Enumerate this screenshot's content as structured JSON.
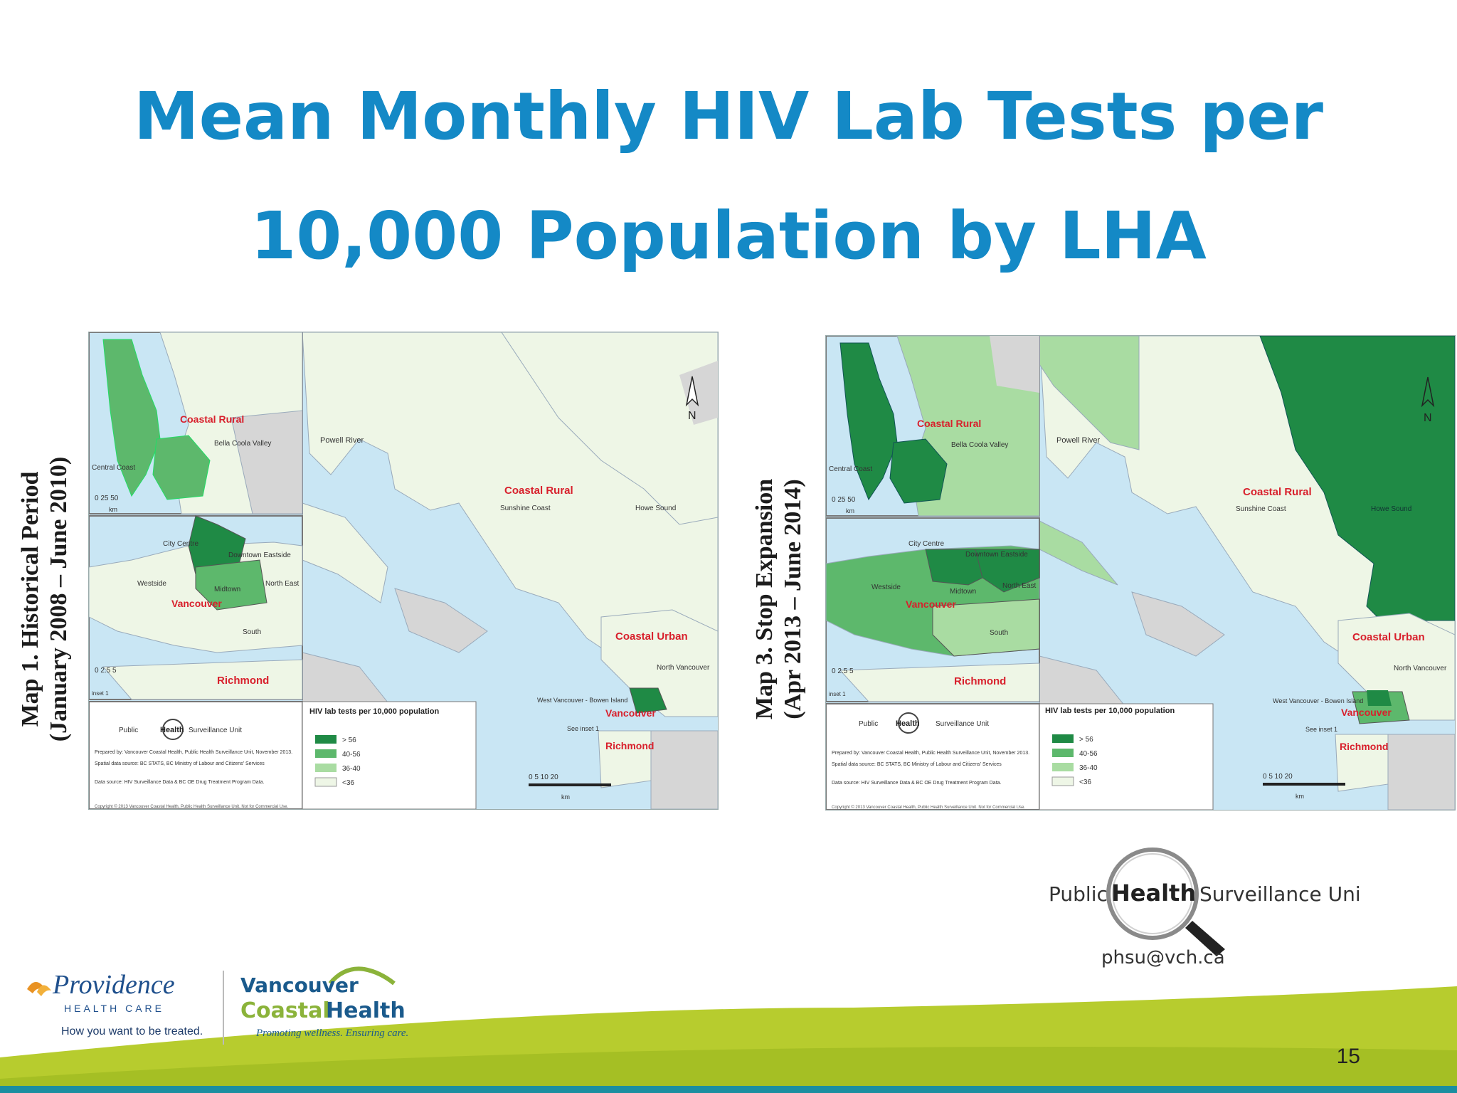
{
  "title": {
    "line1": "Mean Monthly HIV Lab Tests per",
    "line2": "10,000 Population by LHA"
  },
  "map1": {
    "caption_line1": "Map 1. Historical Period",
    "caption_line2": "(January 2008 – June 2010)",
    "regions": {
      "coastal_rural_inset": "Coastal Rural",
      "bella_coola": "Bella Coola Valley",
      "central_coast": "Central Coast",
      "city_centre": "City Centre",
      "downtown_eastside": "Downtown Eastside",
      "westside": "Westside",
      "midtown": "Midtown",
      "north_east": "North East",
      "vancouver": "Vancouver",
      "south": "South",
      "richmond": "Richmond",
      "powell_river": "Powell River",
      "coastal_rural": "Coastal Rural",
      "sunshine_coast": "Sunshine Coast",
      "howe_sound": "Howe Sound",
      "coastal_urban": "Coastal Urban",
      "north_vancouver": "North Vancouver",
      "west_vancouver": "West Vancouver - Bowen Island",
      "see_inset": "See inset 1",
      "vancouver_main": "Vancouver",
      "richmond_main": "Richmond"
    },
    "legend_title": "HIV lab tests per 10,000 population",
    "legend_items": [
      "> 56",
      "40-56",
      "36-40",
      "<36"
    ],
    "phsu_left": "Public",
    "phsu_mid": "Health",
    "phsu_right": "Surveillance Unit",
    "prepared": "Prepared by: Vancouver Coastal Health, Public Health Surveillance Unit, November 2013.",
    "spatial": "Spatial data source: BC STATS, BC Ministry of Labour and Citizens' Services",
    "datasource": "Data source: HIV Surveillance Data & BC OE Drug Treatment Program Data.",
    "copyright": "Copyright © 2013 Vancouver Coastal Health, Public Health Surveillance Unit. Not for Commercial Use.",
    "scale_inset1": "0  25  50",
    "scale_inset2": "0   2.5   5",
    "scale_main": "0   5   10        20",
    "km": "km",
    "north": "N",
    "inset1": "inset 1"
  },
  "map3": {
    "caption_line1": "Map 3. Stop Expansion",
    "caption_line2": "(Apr 2013 – June 2014)",
    "regions": {
      "coastal_rural_inset": "Coastal Rural",
      "bella_coola": "Bella Coola Valley",
      "central_coast": "Central Coast",
      "city_centre": "City Centre",
      "downtown_eastside": "Downtown Eastside",
      "westside": "Westside",
      "midtown": "Midtown",
      "north_east": "North East",
      "vancouver": "Vancouver",
      "south": "South",
      "richmond": "Richmond",
      "powell_river": "Powell River",
      "coastal_rural": "Coastal Rural",
      "sunshine_coast": "Sunshine Coast",
      "howe_sound": "Howe Sound",
      "coastal_urban": "Coastal Urban",
      "north_vancouver": "North Vancouver",
      "west_vancouver": "West Vancouver - Bowen Island",
      "see_inset": "See inset 1",
      "vancouver_main": "Vancouver",
      "richmond_main": "Richmond"
    },
    "legend_title": "HIV lab tests per 10,000 population",
    "legend_items": [
      "> 56",
      "40-56",
      "36-40",
      "<36"
    ],
    "phsu_left": "Public",
    "phsu_mid": "Health",
    "phsu_right": "Surveillance Unit",
    "prepared": "Prepared by: Vancouver Coastal Health, Public Health Surveillance Unit, November 2013.",
    "spatial": "Spatial data source: BC STATS, BC Ministry of Labour and Citizens' Services",
    "datasource": "Data source: HIV Surveillance Data & BC OE Drug Treatment Program Data.",
    "copyright": "Copyright © 2013 Vancouver Coastal Health, Public Health Surveillance Unit. Not for Commercial Use.",
    "scale_inset1": "0  25  50",
    "scale_inset2": "0   2.5   5",
    "scale_main": "0   5   10        20",
    "km": "km",
    "north": "N",
    "inset1": "inset 1"
  },
  "phsu_logo": {
    "left": "Public",
    "mid": "Health",
    "right": "Surveillance Unit",
    "email": "phsu@vch.ca"
  },
  "footer": {
    "providence_name": "Providence",
    "providence_sub": "HEALTH CARE",
    "providence_tag": "How you want to be treated.",
    "vch_line1": "Vancouver",
    "vch_coastal": "Coastal",
    "vch_health": "Health",
    "vch_tag": "Promoting wellness. Ensuring care.",
    "page_number": "15"
  },
  "colors": {
    "title": "#1489c6",
    "water": "#c9e6f4",
    "land_light": "#eef6e6",
    "land_grey": "#d6d6d6",
    "class_gt56": "#1f8a45",
    "class_40_56": "#5db86c",
    "class_36_40": "#a9dca2",
    "class_lt36": "#eef6e6",
    "label_red": "#d8202c",
    "footer_green": "#b7cc2e",
    "footer_teal": "#1a8ea0"
  }
}
